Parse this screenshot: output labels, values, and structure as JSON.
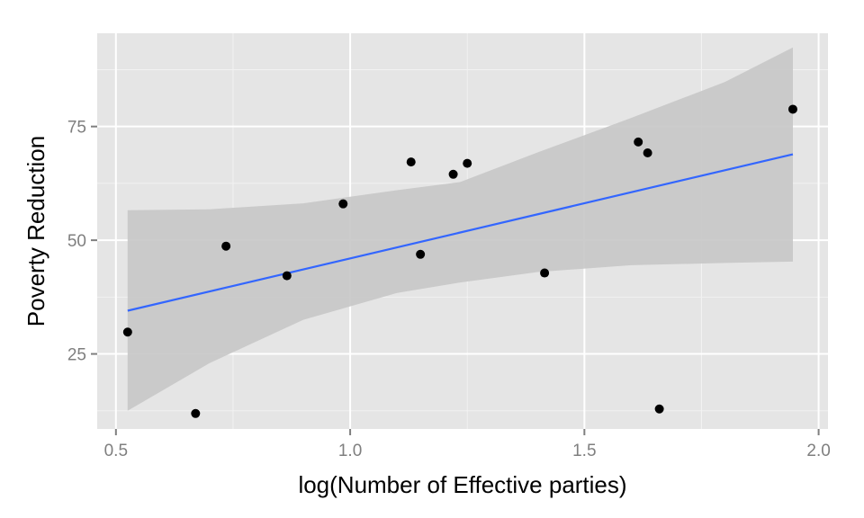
{
  "chart_data": {
    "type": "scatter",
    "xlabel": "log(Number of Effective parties)",
    "ylabel": "Poverty Reduction",
    "xlim": [
      0.46,
      2.02
    ],
    "ylim": [
      8.5,
      95.5
    ],
    "x_ticks": [
      0.5,
      1.0,
      1.5,
      2.0
    ],
    "x_tick_labels": [
      "0.5",
      "1.0",
      "1.5",
      "2.0"
    ],
    "y_ticks": [
      25,
      50,
      75
    ],
    "y_tick_labels": [
      "25",
      "50",
      "75"
    ],
    "grid": true,
    "points": [
      {
        "x": 0.525,
        "y": 29.8
      },
      {
        "x": 0.67,
        "y": 11.9
      },
      {
        "x": 0.735,
        "y": 48.7
      },
      {
        "x": 0.865,
        "y": 42.2
      },
      {
        "x": 0.985,
        "y": 58.0
      },
      {
        "x": 1.13,
        "y": 67.2
      },
      {
        "x": 1.15,
        "y": 46.9
      },
      {
        "x": 1.22,
        "y": 64.5
      },
      {
        "x": 1.25,
        "y": 66.9
      },
      {
        "x": 1.415,
        "y": 42.8
      },
      {
        "x": 1.615,
        "y": 71.6
      },
      {
        "x": 1.635,
        "y": 69.2
      },
      {
        "x": 1.66,
        "y": 12.9
      },
      {
        "x": 1.945,
        "y": 78.8
      }
    ],
    "fit_line": {
      "x": [
        0.525,
        1.945
      ],
      "y": [
        34.5,
        68.9
      ]
    },
    "confidence_band": {
      "x": [
        0.525,
        0.7,
        0.9,
        1.1,
        1.235,
        1.4,
        1.6,
        1.8,
        1.945
      ],
      "lower": [
        12.5,
        23.0,
        32.5,
        38.4,
        40.7,
        43.0,
        44.5,
        45.0,
        45.3
      ],
      "upper": [
        56.6,
        56.8,
        58.1,
        61.0,
        62.8,
        69.3,
        76.9,
        84.8,
        92.4
      ]
    },
    "colors": {
      "panel": "#e5e5e5",
      "grid_major": "#ffffff",
      "grid_minor": "#f2f2f2",
      "band": "#c6c6c6",
      "line": "#3366ff",
      "point": "#000000",
      "tick": "#7f7f7f"
    }
  }
}
